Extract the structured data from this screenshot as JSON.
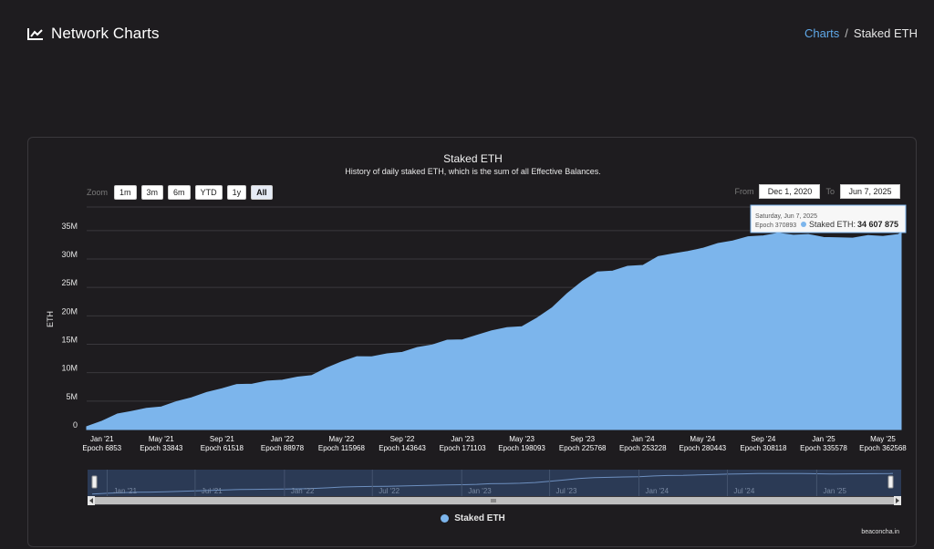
{
  "header": {
    "title": "Network Charts",
    "breadcrumb": {
      "link": "Charts",
      "separator": "/",
      "current": "Staked ETH"
    }
  },
  "controls": {
    "zoom_label": "Zoom",
    "zoom_buttons": [
      "1m",
      "3m",
      "6m",
      "YTD",
      "1y",
      "All"
    ],
    "active_zoom": "All",
    "from_label": "From",
    "from_value": "Dec 1, 2020",
    "to_label": "To",
    "to_value": "Jun 7, 2025"
  },
  "tooltip": {
    "date": "Saturday, Jun 7, 2025",
    "epoch": "Epoch 370893",
    "series": "Staked ETH:",
    "value": "34 607 875"
  },
  "navigator": {
    "labels": [
      "Jan '21",
      "Jul '21",
      "Jan '22",
      "Jul '22",
      "Jan '23",
      "Jul '23",
      "Jan '24",
      "Jul '24",
      "Jan '25"
    ]
  },
  "legend": {
    "label": "Staked ETH"
  },
  "credits": "beaconcha.in",
  "colors": {
    "series": "#7cb5ec",
    "background": "#1e1c1f",
    "link": "#5fa8e8",
    "navigator": "#2b3a55"
  },
  "chart_data": {
    "type": "area",
    "title": "Staked ETH",
    "subtitle": "History of daily staked ETH, which is the sum of all Effective Balances.",
    "ylabel": "ETH",
    "xlabel": "",
    "ylim": [
      0,
      35000000
    ],
    "yticks": [
      "0",
      "5M",
      "10M",
      "15M",
      "20M",
      "25M",
      "30M",
      "35M"
    ],
    "xticks": [
      {
        "date": "Jan '21",
        "epoch": "Epoch 6853"
      },
      {
        "date": "May '21",
        "epoch": "Epoch 33843"
      },
      {
        "date": "Sep '21",
        "epoch": "Epoch 61518"
      },
      {
        "date": "Jan '22",
        "epoch": "Epoch 88978"
      },
      {
        "date": "May '22",
        "epoch": "Epoch 115968"
      },
      {
        "date": "Sep '22",
        "epoch": "Epoch 143643"
      },
      {
        "date": "Jan '23",
        "epoch": "Epoch 171103"
      },
      {
        "date": "May '23",
        "epoch": "Epoch 198093"
      },
      {
        "date": "Sep '23",
        "epoch": "Epoch 225768"
      },
      {
        "date": "Jan '24",
        "epoch": "Epoch 253228"
      },
      {
        "date": "May '24",
        "epoch": "Epoch 280443"
      },
      {
        "date": "Sep '24",
        "epoch": "Epoch 308118"
      },
      {
        "date": "Jan '25",
        "epoch": "Epoch 335578"
      },
      {
        "date": "May '25",
        "epoch": "Epoch 362568"
      }
    ],
    "grid": true,
    "legend": "bottom-center",
    "series": [
      {
        "name": "Staked ETH",
        "x": [
          "2020-12-01",
          "2021-01-01",
          "2021-02-01",
          "2021-03-01",
          "2021-04-01",
          "2021-05-01",
          "2021-06-01",
          "2021-07-01",
          "2021-08-01",
          "2021-09-01",
          "2021-10-01",
          "2021-11-01",
          "2021-12-01",
          "2022-01-01",
          "2022-02-01",
          "2022-03-01",
          "2022-04-01",
          "2022-05-01",
          "2022-06-01",
          "2022-07-01",
          "2022-08-01",
          "2022-09-01",
          "2022-10-01",
          "2022-11-01",
          "2022-12-01",
          "2023-01-01",
          "2023-02-01",
          "2023-03-01",
          "2023-04-01",
          "2023-05-01",
          "2023-06-01",
          "2023-07-01",
          "2023-08-01",
          "2023-09-01",
          "2023-10-01",
          "2023-11-01",
          "2023-12-01",
          "2024-01-01",
          "2024-02-01",
          "2024-03-01",
          "2024-04-01",
          "2024-05-01",
          "2024-06-01",
          "2024-07-01",
          "2024-08-01",
          "2024-09-01",
          "2024-10-01",
          "2024-11-01",
          "2024-12-01",
          "2025-01-01",
          "2025-02-01",
          "2025-03-01",
          "2025-04-01",
          "2025-05-01",
          "2025-06-01",
          "2025-06-07"
        ],
        "values": [
          500000,
          1600000,
          2600000,
          3300000,
          3600000,
          4100000,
          4800000,
          5700000,
          6400000,
          7300000,
          7800000,
          8100000,
          8400000,
          8800000,
          9100000,
          9600000,
          10700000,
          12000000,
          12700000,
          12900000,
          13200000,
          13700000,
          14300000,
          15000000,
          15600000,
          15900000,
          16500000,
          17500000,
          17800000,
          18200000,
          19500000,
          21500000,
          23800000,
          26200000,
          27600000,
          28000000,
          28600000,
          29000000,
          30300000,
          31000000,
          31200000,
          32000000,
          32600000,
          33300000,
          33800000,
          34200000,
          34400000,
          34300000,
          34200000,
          33900000,
          33600000,
          33800000,
          34000000,
          34100000,
          34200000,
          34607875
        ]
      }
    ]
  }
}
